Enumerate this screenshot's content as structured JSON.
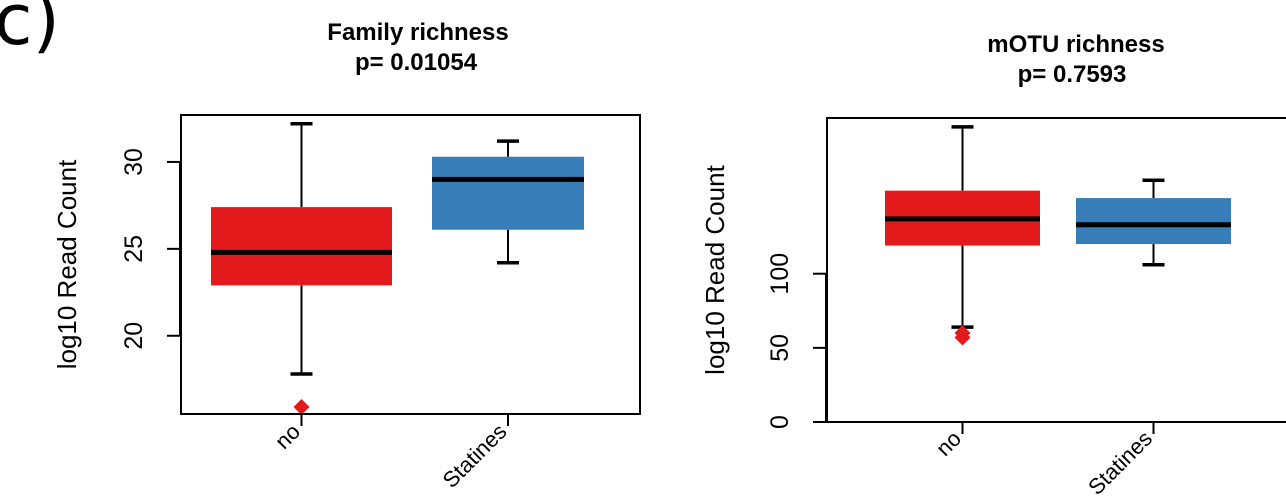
{
  "panel_label": "c)",
  "chart_data": [
    {
      "type": "box",
      "title": "Family richness",
      "subtitle": "p= 0.01054",
      "ylabel": "log10 Read Count",
      "ylim": [
        15.5,
        32.7
      ],
      "yticks": [
        20,
        25,
        30
      ],
      "categories": [
        "no",
        "Statines"
      ],
      "colors": [
        "#e31a1c",
        "#377eb8"
      ],
      "boxes": [
        {
          "category": "no",
          "whisker_low": 17.8,
          "q1": 22.9,
          "median": 24.8,
          "q3": 27.4,
          "whisker_high": 32.2,
          "outliers": [
            15.9
          ]
        },
        {
          "category": "Statines",
          "whisker_low": 24.2,
          "q1": 26.1,
          "median": 29.0,
          "q3": 30.3,
          "whisker_high": 31.2,
          "outliers": []
        }
      ]
    },
    {
      "type": "box",
      "title": "mOTU richness",
      "subtitle": "p= 0.7593",
      "ylabel": "log10 Read Count",
      "ylim": [
        0,
        205
      ],
      "yticks": [
        0,
        50,
        100
      ],
      "categories": [
        "no",
        "Statines"
      ],
      "colors": [
        "#e31a1c",
        "#377eb8"
      ],
      "boxes": [
        {
          "category": "no",
          "whisker_low": 64,
          "q1": 119,
          "median": 137,
          "q3": 156,
          "whisker_high": 199,
          "outliers": [
            57,
            60
          ]
        },
        {
          "category": "Statines",
          "whisker_low": 106,
          "q1": 120,
          "median": 133,
          "q3": 151,
          "whisker_high": 163,
          "outliers": []
        }
      ]
    }
  ]
}
